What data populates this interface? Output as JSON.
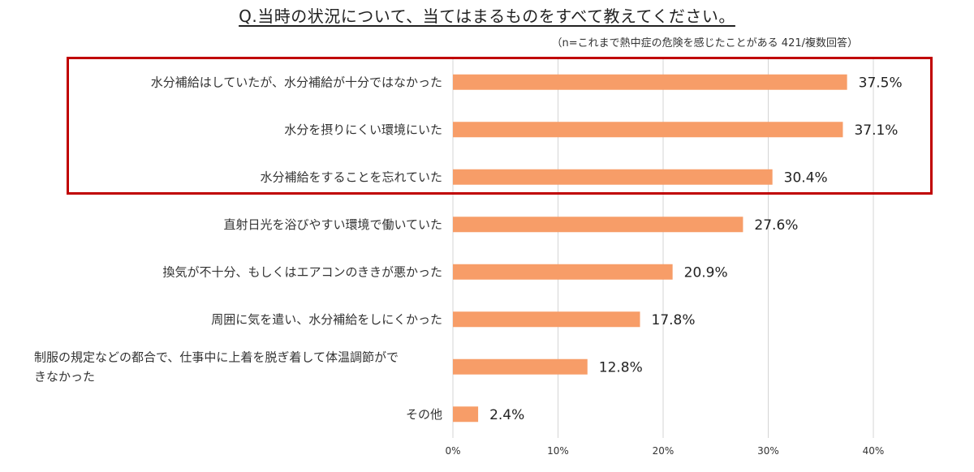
{
  "chart_data": {
    "type": "bar",
    "orientation": "horizontal",
    "title": "Q.当時の状況について、当てはまるものをすべて教えてください。",
    "subtitle": "（n=これまで熱中症の危険を感じたことがある 421/複数回答）",
    "categories": [
      "水分補給はしていたが、水分補給が十分ではなかった",
      "水分を摂りにくい環境にいた",
      "水分補給をすることを忘れていた",
      "直射日光を浴びやすい環境で働いていた",
      "換気が不十分、もしくはエアコンのききが悪かった",
      "周囲に気を遣い、水分補給をしにくかった",
      "制服の規定などの都合で、仕事中に上着を脱ぎ着して体温調節ができなかった",
      "その他"
    ],
    "category_lines": [
      [
        "水分補給はしていたが、水分補給が十分ではなかった"
      ],
      [
        "水分を摂りにくい環境にいた"
      ],
      [
        "水分補給をすることを忘れていた"
      ],
      [
        "直射日光を浴びやすい環境で働いていた"
      ],
      [
        "換気が不十分、もしくはエアコンのききが悪かった"
      ],
      [
        "周囲に気を遣い、水分補給をしにくかった"
      ],
      [
        "制服の規定などの都合で、仕事中に上着を脱ぎ着して体温調節がで",
        "きなかった"
      ],
      [
        "その他"
      ]
    ],
    "values": [
      37.5,
      37.1,
      30.4,
      27.6,
      20.9,
      17.8,
      12.8,
      2.4
    ],
    "value_labels": [
      "37.5%",
      "37.1%",
      "30.4%",
      "27.6%",
      "20.9%",
      "17.8%",
      "12.8%",
      "2.4%"
    ],
    "xlim": [
      0,
      40
    ],
    "ticks": [
      0,
      10,
      20,
      30,
      40
    ],
    "tick_labels": [
      "0%",
      "10%",
      "20%",
      "30%",
      "40%"
    ],
    "grid": "vertical",
    "highlighted_categories": [
      0,
      1,
      2
    ],
    "colors": {
      "bar": "#f79d68",
      "grid": "#d4d4d4",
      "highlight_border": "#c00000"
    }
  }
}
